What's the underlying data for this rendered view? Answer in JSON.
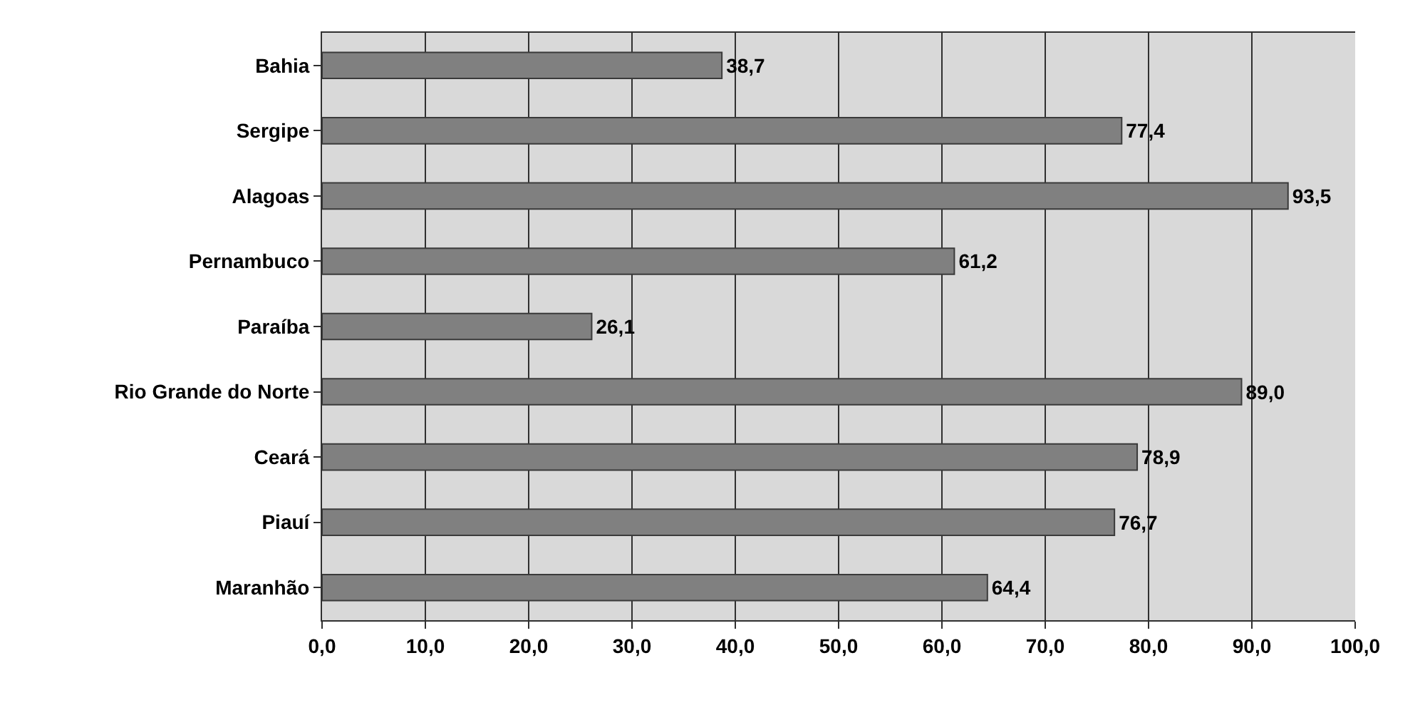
{
  "chart_data": {
    "type": "bar",
    "orientation": "horizontal",
    "categories": [
      "Bahia",
      "Sergipe",
      "Alagoas",
      "Pernambuco",
      "Paraíba",
      "Rio Grande do Norte",
      "Ceará",
      "Piauí",
      "Maranhão"
    ],
    "values": [
      38.7,
      77.4,
      93.5,
      61.2,
      26.1,
      89.0,
      78.9,
      76.7,
      64.4
    ],
    "value_labels": [
      "38,7",
      "77,4",
      "93,5",
      "61,2",
      "26,1",
      "89,0",
      "78,9",
      "76,7",
      "64,4"
    ],
    "color": "#808080",
    "xlim": [
      0,
      100
    ],
    "xticks": [
      {
        "value": 0,
        "label": "0,0"
      },
      {
        "value": 10,
        "label": "10,0"
      },
      {
        "value": 20,
        "label": "20,0"
      },
      {
        "value": 30,
        "label": "30,0"
      },
      {
        "value": 40,
        "label": "40,0"
      },
      {
        "value": 50,
        "label": "50,0"
      },
      {
        "value": 60,
        "label": "60,0"
      },
      {
        "value": 70,
        "label": "70,0"
      },
      {
        "value": 80,
        "label": "80,0"
      },
      {
        "value": 90,
        "label": "90,0"
      },
      {
        "value": 100,
        "label": "100,0"
      }
    ],
    "grid": "x",
    "legend": false
  }
}
